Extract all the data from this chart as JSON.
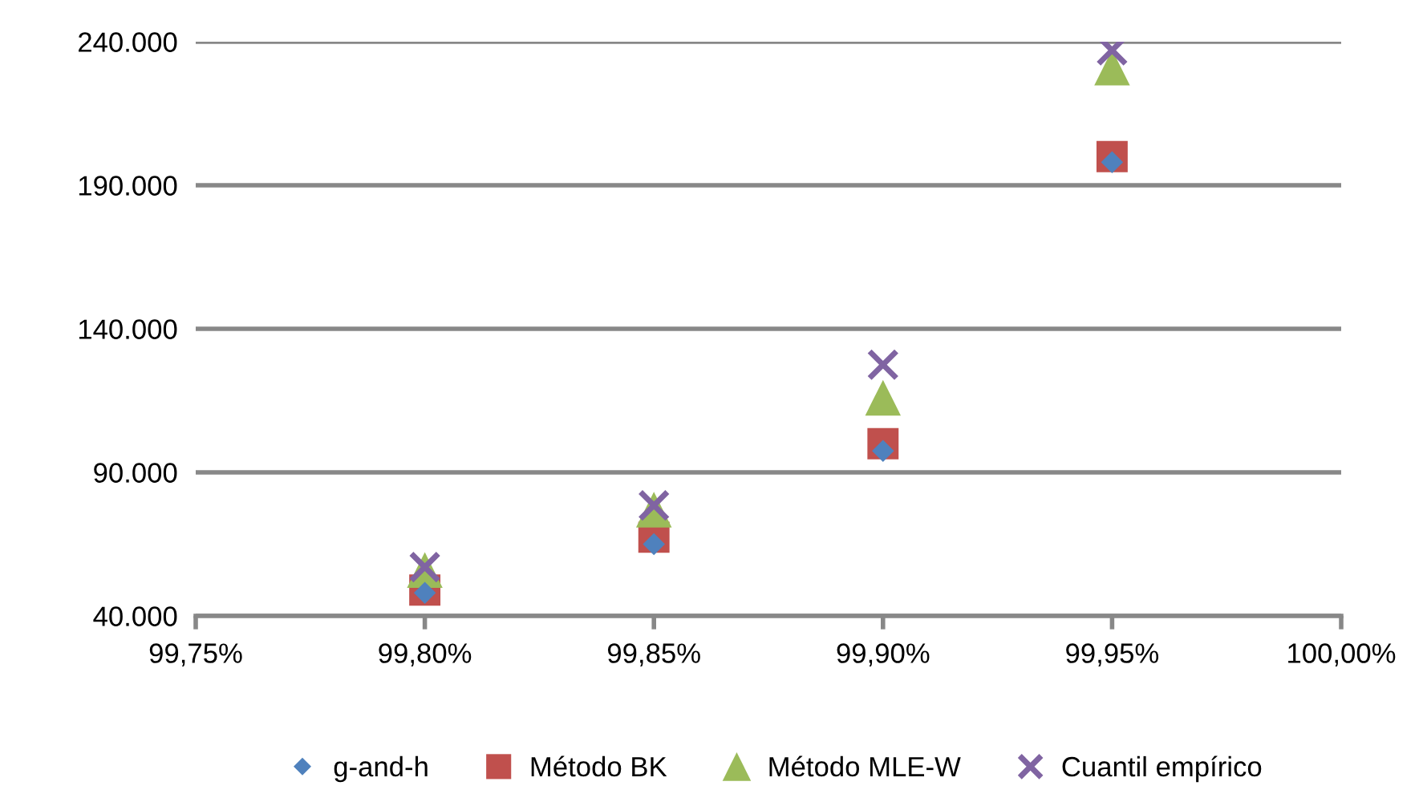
{
  "chart_data": {
    "type": "scatter",
    "x": [
      99.8,
      99.85,
      99.9,
      99.95
    ],
    "series": [
      {
        "name": "g-and-h",
        "color": "#4f81bd",
        "marker": "diamond",
        "values": [
          48000,
          65000,
          97500,
          198000
        ]
      },
      {
        "name": "Método BK",
        "color": "#c0504d",
        "marker": "square",
        "values": [
          49000,
          67400,
          100000,
          200000
        ]
      },
      {
        "name": "Método MLE-W",
        "color": "#9bbb59",
        "marker": "triangle",
        "values": [
          56000,
          77000,
          116000,
          231000
        ]
      },
      {
        "name": "Cuantil empírico",
        "color": "#8064a2",
        "marker": "cross",
        "values": [
          57000,
          78500,
          127500,
          237000
        ]
      }
    ],
    "xlim": [
      99.75,
      100.0
    ],
    "xticks": [
      {
        "value": 99.75,
        "label": "99,75%"
      },
      {
        "value": 99.8,
        "label": "99,80%"
      },
      {
        "value": 99.85,
        "label": "99,85%"
      },
      {
        "value": 99.9,
        "label": "99,90%"
      },
      {
        "value": 99.95,
        "label": "99,95%"
      },
      {
        "value": 100.0,
        "label": "100,00%"
      }
    ],
    "ylim": [
      40000,
      240000
    ],
    "yticks": [
      {
        "value": 40000,
        "label": "40.000"
      },
      {
        "value": 90000,
        "label": "90.000"
      },
      {
        "value": 140000,
        "label": "140.000"
      },
      {
        "value": 190000,
        "label": "190.000"
      },
      {
        "value": 240000,
        "label": "240.000"
      }
    ],
    "grid": "y",
    "legend": "bottom"
  }
}
